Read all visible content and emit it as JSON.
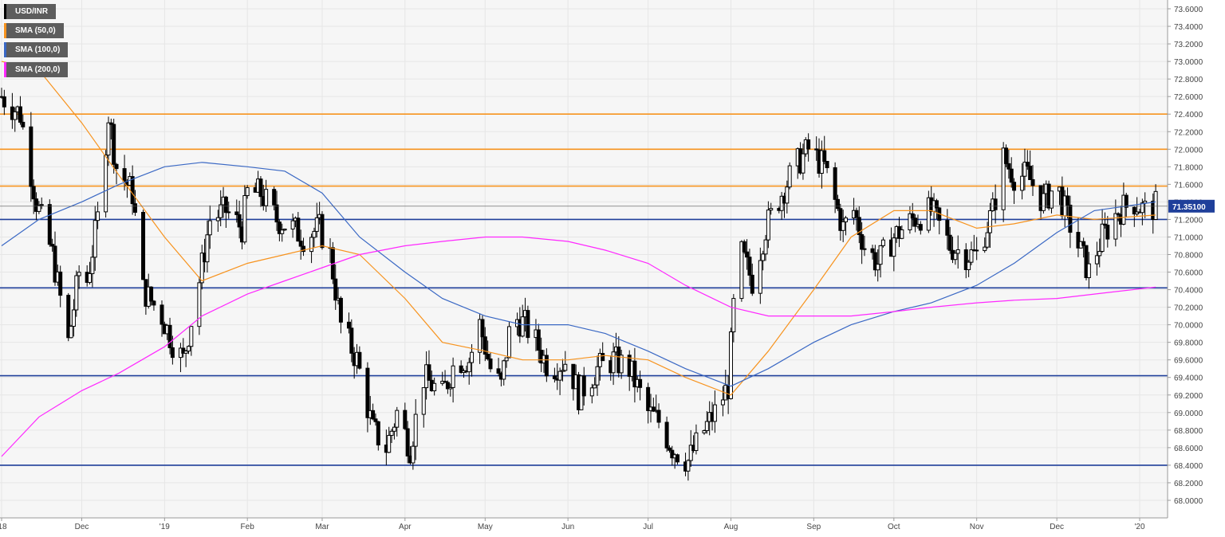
{
  "chart_data": {
    "type": "candlestick",
    "title": "",
    "symbol": "USD/INR",
    "ylim": [
      67.8,
      73.7
    ],
    "y_ticks": [
      "73.6000",
      "73.4000",
      "73.2000",
      "73.0000",
      "72.8000",
      "72.6000",
      "72.4000",
      "72.2000",
      "72.0000",
      "71.8000",
      "71.6000",
      "71.4000",
      "71.2000",
      "71.0000",
      "70.8000",
      "70.6000",
      "70.4000",
      "70.2000",
      "70.0000",
      "69.8000",
      "69.6000",
      "69.4000",
      "69.2000",
      "69.0000",
      "68.8000",
      "68.6000",
      "68.4000",
      "68.2000",
      "68.0000"
    ],
    "x_ticks": [
      {
        "label": "'18",
        "date": "2018-11-01"
      },
      {
        "label": "Dec",
        "date": "2018-12-01"
      },
      {
        "label": "'19",
        "date": "2019-01-01"
      },
      {
        "label": "Feb",
        "date": "2019-02-01"
      },
      {
        "label": "Mar",
        "date": "2019-03-01"
      },
      {
        "label": "Apr",
        "date": "2019-04-01"
      },
      {
        "label": "May",
        "date": "2019-05-01"
      },
      {
        "label": "Jun",
        "date": "2019-06-01"
      },
      {
        "label": "Jul",
        "date": "2019-07-01"
      },
      {
        "label": "Aug",
        "date": "2019-08-01"
      },
      {
        "label": "Sep",
        "date": "2019-09-01"
      },
      {
        "label": "Oct",
        "date": "2019-10-01"
      },
      {
        "label": "Nov",
        "date": "2019-11-01"
      },
      {
        "label": "Dec",
        "date": "2019-12-01"
      },
      {
        "label": "'20",
        "date": "2020-01-01"
      }
    ],
    "x_range": [
      "2018-11-01",
      "2020-01-13"
    ],
    "last_price": "71.35100",
    "grid": true,
    "legend_position": "top-left",
    "legend": [
      {
        "label": "USD/INR",
        "color": "#000000"
      },
      {
        "label": "SMA (50,0)",
        "color": "#f7931e"
      },
      {
        "label": "SMA (100,0)",
        "color": "#3a68c4"
      },
      {
        "label": "SMA (200,0)",
        "color": "#ff28ff"
      }
    ],
    "horizontal_levels": [
      {
        "value": 72.4,
        "color": "#f7931e"
      },
      {
        "value": 72.0,
        "color": "#f7931e"
      },
      {
        "value": 71.58,
        "color": "#f7931e"
      },
      {
        "value": 71.2,
        "color": "#1f3f9a"
      },
      {
        "value": 70.42,
        "color": "#1f3f9a"
      },
      {
        "value": 69.42,
        "color": "#1f3f9a"
      },
      {
        "value": 68.4,
        "color": "#1f3f9a"
      }
    ],
    "series": [
      {
        "name": "USD/INR",
        "kind": "ohlc_anchors",
        "points": [
          [
            "2018-11-01",
            72.6
          ],
          [
            "2018-11-08",
            72.4
          ],
          [
            "2018-11-14",
            71.4
          ],
          [
            "2018-11-20",
            70.8
          ],
          [
            "2018-11-26",
            69.8
          ],
          [
            "2018-11-30",
            70.6
          ],
          [
            "2018-12-03",
            70.5
          ],
          [
            "2018-12-07",
            71.2
          ],
          [
            "2018-12-11",
            72.4
          ],
          [
            "2018-12-14",
            71.8
          ],
          [
            "2018-12-20",
            71.5
          ],
          [
            "2018-12-24",
            70.4
          ],
          [
            "2018-12-31",
            70.1
          ],
          [
            "2019-01-04",
            69.8
          ],
          [
            "2019-01-08",
            69.6
          ],
          [
            "2019-01-14",
            70.5
          ],
          [
            "2019-01-18",
            71.2
          ],
          [
            "2019-01-24",
            71.3
          ],
          [
            "2019-01-30",
            71.1
          ],
          [
            "2019-02-01",
            71.5
          ],
          [
            "2019-02-06",
            71.5
          ],
          [
            "2019-02-12",
            71.2
          ],
          [
            "2019-02-18",
            71.1
          ],
          [
            "2019-02-22",
            71.0
          ],
          [
            "2019-02-28",
            71.1
          ],
          [
            "2019-03-04",
            70.8
          ],
          [
            "2019-03-08",
            70.0
          ],
          [
            "2019-03-14",
            69.6
          ],
          [
            "2019-03-20",
            68.8
          ],
          [
            "2019-03-25",
            68.6
          ],
          [
            "2019-03-29",
            69.0
          ],
          [
            "2019-04-03",
            68.6
          ],
          [
            "2019-04-08",
            69.4
          ],
          [
            "2019-04-15",
            69.2
          ],
          [
            "2019-04-20",
            69.6
          ],
          [
            "2019-04-25",
            69.6
          ],
          [
            "2019-04-29",
            70.0
          ],
          [
            "2019-05-03",
            69.5
          ],
          [
            "2019-05-07",
            69.3
          ],
          [
            "2019-05-11",
            70.1
          ],
          [
            "2019-05-16",
            70.0
          ],
          [
            "2019-05-20",
            69.8
          ],
          [
            "2019-05-25",
            69.5
          ],
          [
            "2019-06-01",
            69.6
          ],
          [
            "2019-06-05",
            69.2
          ],
          [
            "2019-06-12",
            69.5
          ],
          [
            "2019-06-18",
            69.6
          ],
          [
            "2019-06-24",
            69.5
          ],
          [
            "2019-07-01",
            69.0
          ],
          [
            "2019-07-05",
            68.9
          ],
          [
            "2019-07-10",
            68.6
          ],
          [
            "2019-07-16",
            68.45
          ],
          [
            "2019-07-22",
            68.8
          ],
          [
            "2019-07-26",
            69.0
          ],
          [
            "2019-07-31",
            69.3
          ],
          [
            "2019-08-02",
            70.2
          ],
          [
            "2019-08-05",
            70.8
          ],
          [
            "2019-08-09",
            70.5
          ],
          [
            "2019-08-14",
            71.1
          ],
          [
            "2019-08-20",
            71.5
          ],
          [
            "2019-08-25",
            71.8
          ],
          [
            "2019-08-30",
            72.0
          ],
          [
            "2019-09-05",
            71.8
          ],
          [
            "2019-09-12",
            71.1
          ],
          [
            "2019-09-16",
            71.3
          ],
          [
            "2019-09-20",
            70.9
          ],
          [
            "2019-09-25",
            70.7
          ],
          [
            "2019-10-01",
            71.0
          ],
          [
            "2019-10-08",
            71.2
          ],
          [
            "2019-10-15",
            71.3
          ],
          [
            "2019-10-22",
            70.9
          ],
          [
            "2019-10-28",
            70.8
          ],
          [
            "2019-11-01",
            70.8
          ],
          [
            "2019-11-07",
            71.3
          ],
          [
            "2019-11-11",
            71.9
          ],
          [
            "2019-11-15",
            71.7
          ],
          [
            "2019-11-20",
            71.7
          ],
          [
            "2019-11-26",
            71.4
          ],
          [
            "2019-12-01",
            71.6
          ],
          [
            "2019-12-04",
            71.3
          ],
          [
            "2019-12-09",
            70.9
          ],
          [
            "2019-12-13",
            70.6
          ],
          [
            "2019-12-18",
            71.0
          ],
          [
            "2019-12-24",
            71.3
          ],
          [
            "2019-12-30",
            71.4
          ],
          [
            "2020-01-03",
            71.3
          ],
          [
            "2020-01-07",
            71.35
          ]
        ]
      },
      {
        "name": "SMA (50,0)",
        "points": [
          [
            "2018-11-01",
            73.0
          ],
          [
            "2018-11-15",
            72.9
          ],
          [
            "2018-12-01",
            72.3
          ],
          [
            "2018-12-15",
            71.7
          ],
          [
            "2019-01-01",
            71.0
          ],
          [
            "2019-01-15",
            70.5
          ],
          [
            "2019-02-01",
            70.7
          ],
          [
            "2019-02-15",
            70.8
          ],
          [
            "2019-03-01",
            70.9
          ],
          [
            "2019-03-15",
            70.8
          ],
          [
            "2019-04-01",
            70.3
          ],
          [
            "2019-04-15",
            69.8
          ],
          [
            "2019-05-01",
            69.7
          ],
          [
            "2019-05-15",
            69.6
          ],
          [
            "2019-06-01",
            69.6
          ],
          [
            "2019-06-15",
            69.65
          ],
          [
            "2019-07-01",
            69.6
          ],
          [
            "2019-07-15",
            69.4
          ],
          [
            "2019-08-01",
            69.2
          ],
          [
            "2019-08-15",
            69.7
          ],
          [
            "2019-09-01",
            70.4
          ],
          [
            "2019-09-15",
            71.0
          ],
          [
            "2019-10-01",
            71.3
          ],
          [
            "2019-10-15",
            71.3
          ],
          [
            "2019-11-01",
            71.1
          ],
          [
            "2019-11-15",
            71.15
          ],
          [
            "2019-12-01",
            71.25
          ],
          [
            "2019-12-15",
            71.2
          ],
          [
            "2020-01-07",
            71.25
          ]
        ]
      },
      {
        "name": "SMA (100,0)",
        "points": [
          [
            "2018-11-01",
            70.9
          ],
          [
            "2018-11-15",
            71.2
          ],
          [
            "2018-12-01",
            71.4
          ],
          [
            "2018-12-15",
            71.6
          ],
          [
            "2019-01-01",
            71.8
          ],
          [
            "2019-01-15",
            71.85
          ],
          [
            "2019-02-01",
            71.8
          ],
          [
            "2019-02-15",
            71.75
          ],
          [
            "2019-03-01",
            71.5
          ],
          [
            "2019-03-15",
            71.0
          ],
          [
            "2019-04-01",
            70.6
          ],
          [
            "2019-04-15",
            70.3
          ],
          [
            "2019-05-01",
            70.1
          ],
          [
            "2019-05-15",
            70.0
          ],
          [
            "2019-06-01",
            70.0
          ],
          [
            "2019-06-15",
            69.9
          ],
          [
            "2019-07-01",
            69.7
          ],
          [
            "2019-07-15",
            69.5
          ],
          [
            "2019-08-01",
            69.3
          ],
          [
            "2019-08-15",
            69.5
          ],
          [
            "2019-09-01",
            69.8
          ],
          [
            "2019-09-15",
            70.0
          ],
          [
            "2019-10-01",
            70.15
          ],
          [
            "2019-10-15",
            70.25
          ],
          [
            "2019-11-01",
            70.45
          ],
          [
            "2019-11-15",
            70.7
          ],
          [
            "2019-12-01",
            71.05
          ],
          [
            "2019-12-15",
            71.3
          ],
          [
            "2020-01-07",
            71.4
          ]
        ]
      },
      {
        "name": "SMA (200,0)",
        "points": [
          [
            "2018-11-01",
            68.5
          ],
          [
            "2018-11-15",
            68.95
          ],
          [
            "2018-12-01",
            69.25
          ],
          [
            "2018-12-15",
            69.45
          ],
          [
            "2019-01-01",
            69.75
          ],
          [
            "2019-01-15",
            70.1
          ],
          [
            "2019-02-01",
            70.35
          ],
          [
            "2019-02-15",
            70.5
          ],
          [
            "2019-03-01",
            70.65
          ],
          [
            "2019-03-15",
            70.8
          ],
          [
            "2019-04-01",
            70.9
          ],
          [
            "2019-04-15",
            70.95
          ],
          [
            "2019-05-01",
            71.0
          ],
          [
            "2019-05-15",
            71.0
          ],
          [
            "2019-06-01",
            70.95
          ],
          [
            "2019-06-15",
            70.85
          ],
          [
            "2019-07-01",
            70.7
          ],
          [
            "2019-07-15",
            70.45
          ],
          [
            "2019-08-01",
            70.2
          ],
          [
            "2019-08-15",
            70.1
          ],
          [
            "2019-09-01",
            70.1
          ],
          [
            "2019-09-15",
            70.1
          ],
          [
            "2019-10-01",
            70.15
          ],
          [
            "2019-10-15",
            70.2
          ],
          [
            "2019-11-01",
            70.25
          ],
          [
            "2019-11-15",
            70.28
          ],
          [
            "2019-12-01",
            70.3
          ],
          [
            "2019-12-15",
            70.35
          ],
          [
            "2020-01-07",
            70.43
          ]
        ]
      }
    ]
  }
}
